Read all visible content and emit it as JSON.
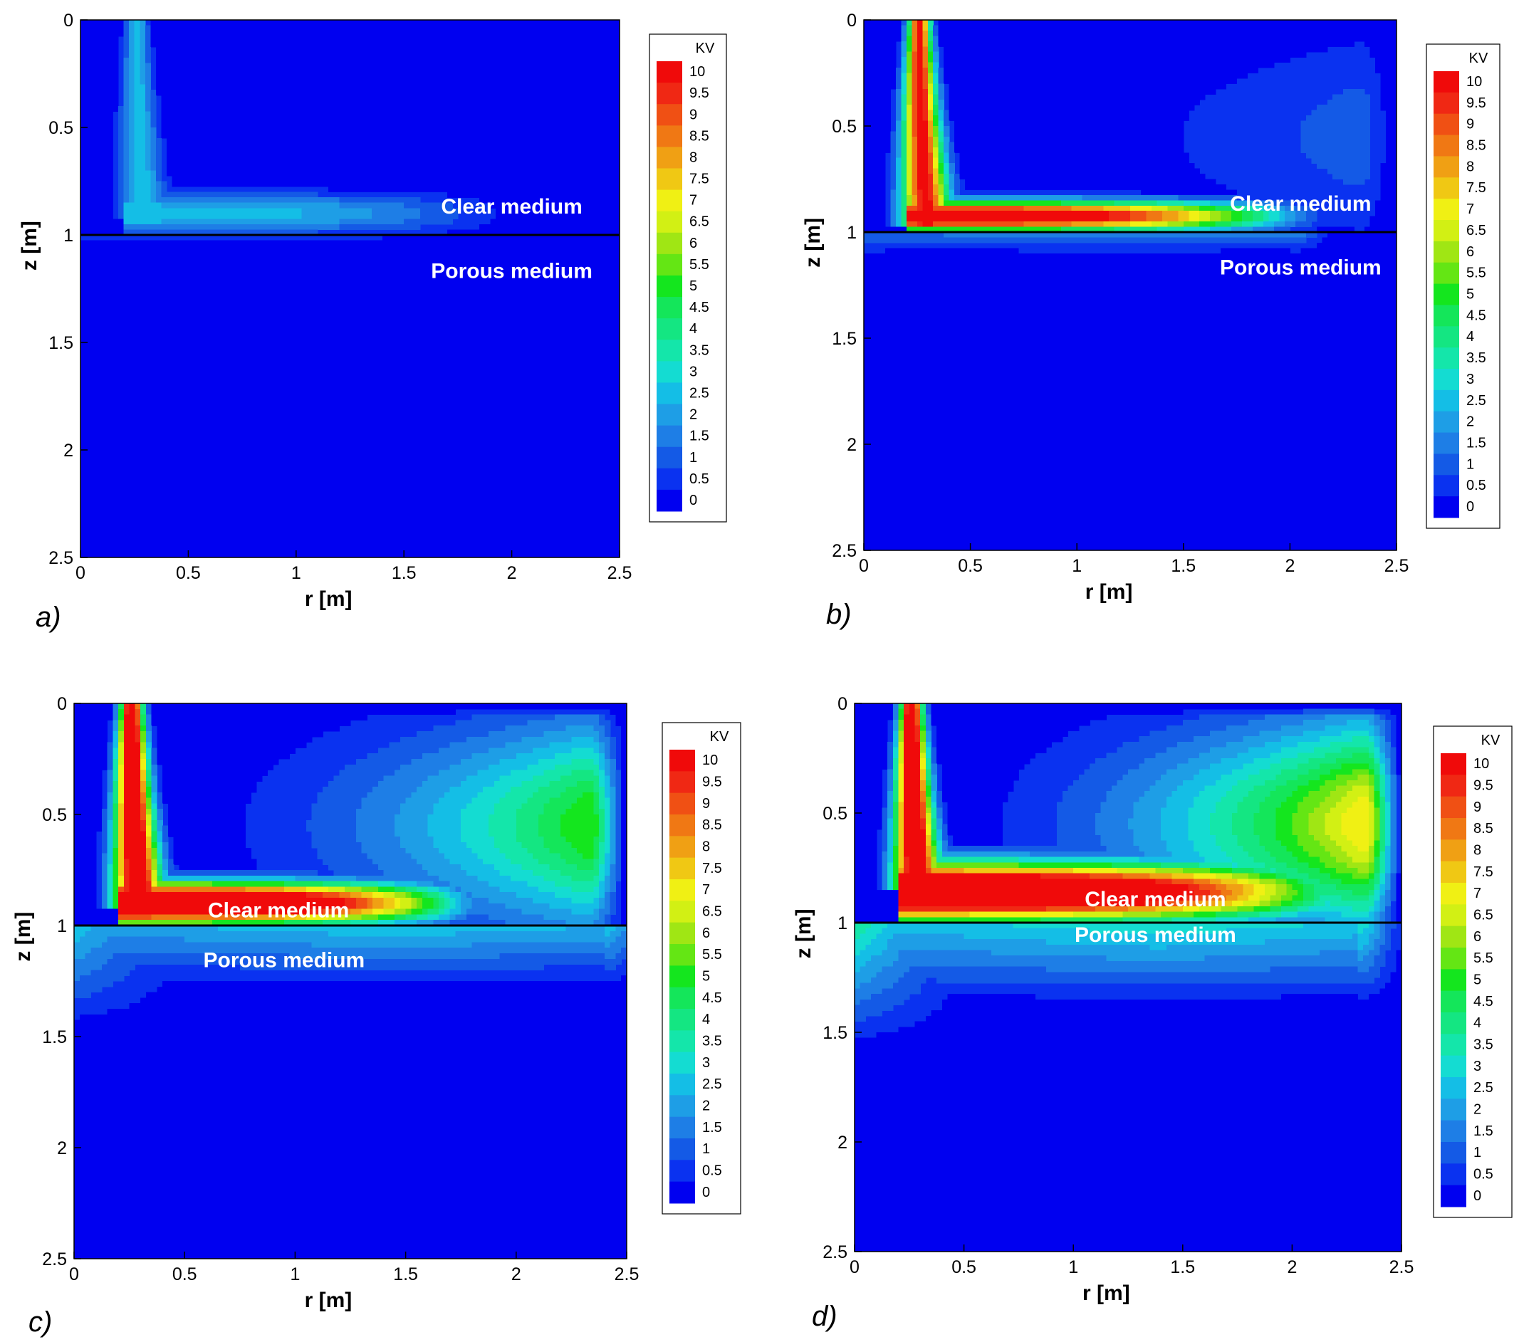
{
  "chart_data": [
    {
      "type": "heatmap",
      "panel_label": "a)",
      "xlabel": "r [m]",
      "ylabel": "z [m]",
      "xlim": [
        0,
        2.5
      ],
      "ylim": [
        2.5,
        0
      ],
      "xticks": [
        "0",
        "0.5",
        "1",
        "1.5",
        "2",
        "2.5"
      ],
      "yticks": [
        "0",
        "0.5",
        "1",
        "1.5",
        "2",
        "2.5"
      ],
      "interface_z": 1,
      "annotations": [
        "Clear medium",
        "Porous medium"
      ],
      "jet": {
        "r": 0.26,
        "top_z": 0,
        "peak": 2.8
      },
      "clear_layer": {
        "r_end": 1.95,
        "top_z": 0.8,
        "peak": 2.5
      },
      "porous_layer": {
        "r_end": 1.3,
        "bottom_z": 1.05,
        "peak": 1.0
      },
      "bg_flow": {
        "peak": 0
      },
      "left_lobe": {
        "bottom_z": 1.0,
        "peak": 0
      }
    },
    {
      "type": "heatmap",
      "panel_label": "b)",
      "xlabel": "r [m]",
      "ylabel": "z [m]",
      "xlim": [
        0,
        2.5
      ],
      "ylim": [
        2.5,
        0
      ],
      "xticks": [
        "0",
        "0.5",
        "1",
        "1.5",
        "2",
        "2.5"
      ],
      "yticks": [
        "0",
        "0.5",
        "1",
        "1.5",
        "2",
        "2.5"
      ],
      "interface_z": 1,
      "annotations": [
        "Clear medium",
        "Porous medium"
      ],
      "jet": {
        "r": 0.26,
        "top_z": 0,
        "peak": 10.5
      },
      "clear_layer": {
        "r_end": 2.05,
        "top_z": 0.85,
        "peak": 10.5
      },
      "porous_layer": {
        "r_end": 2.0,
        "bottom_z": 1.12,
        "peak": 2.0
      },
      "bg_flow": {
        "peak": 1.3
      },
      "left_lobe": {
        "bottom_z": 1.22,
        "peak": 1.0
      }
    },
    {
      "type": "heatmap",
      "panel_label": "c)",
      "xlabel": "r [m]",
      "ylabel": "z [m]",
      "xlim": [
        0,
        2.5
      ],
      "ylim": [
        2.5,
        0
      ],
      "xticks": [
        "0",
        "0.5",
        "1",
        "1.5",
        "2",
        "2.5"
      ],
      "yticks": [
        "0",
        "0.5",
        "1",
        "1.5",
        "2",
        "2.5"
      ],
      "interface_z": 1,
      "annotations": [
        "Clear medium",
        "Porous medium"
      ],
      "jet": {
        "r": 0.26,
        "top_z": 0,
        "peak": 12
      },
      "clear_layer": {
        "r_end": 1.8,
        "top_z": 0.8,
        "peak": 12
      },
      "porous_layer": {
        "r_end": 2.4,
        "bottom_z": 1.3,
        "peak": 3.0
      },
      "bg_flow": {
        "peak": 5.5
      },
      "left_lobe": {
        "bottom_z": 1.5,
        "peak": 3.0
      }
    },
    {
      "type": "heatmap",
      "panel_label": "d)",
      "xlabel": "r [m]",
      "ylabel": "z [m]",
      "xlim": [
        0,
        2.5
      ],
      "ylim": [
        2.5,
        0
      ],
      "xticks": [
        "0",
        "0.5",
        "1",
        "1.5",
        "2",
        "2.5"
      ],
      "yticks": [
        "0",
        "0.5",
        "1",
        "1.5",
        "2",
        "2.5"
      ],
      "interface_z": 1,
      "annotations": [
        "Clear medium",
        "Porous medium"
      ],
      "jet": {
        "r": 0.26,
        "top_z": 0,
        "peak": 12
      },
      "clear_layer": {
        "r_end": 2.3,
        "top_z": 0.72,
        "peak": 12
      },
      "porous_layer": {
        "r_end": 2.3,
        "bottom_z": 1.4,
        "peak": 3.5
      },
      "bg_flow": {
        "peak": 7.5
      },
      "left_lobe": {
        "bottom_z": 1.6,
        "peak": 4.0
      }
    }
  ],
  "colorbar": {
    "title": "KV",
    "levels": [
      "10",
      "9.5",
      "9",
      "8.5",
      "8",
      "7.5",
      "7",
      "6.5",
      "6",
      "5.5",
      "5",
      "4.5",
      "4",
      "3.5",
      "3",
      "2.5",
      "2",
      "1.5",
      "1",
      "0.5",
      "0"
    ],
    "colors": [
      "#0000f0",
      "#0a32f0",
      "#145ae6",
      "#1e7ee6",
      "#1e9ee6",
      "#14bee6",
      "#14dcd2",
      "#14e6aa",
      "#14e682",
      "#14e65a",
      "#14e61e",
      "#64e614",
      "#a0e614",
      "#d2f014",
      "#f0f014",
      "#f0c814",
      "#f0a014",
      "#f07814",
      "#f05014",
      "#f02814",
      "#f00a0a"
    ],
    "background_color": "#0a32f0"
  }
}
